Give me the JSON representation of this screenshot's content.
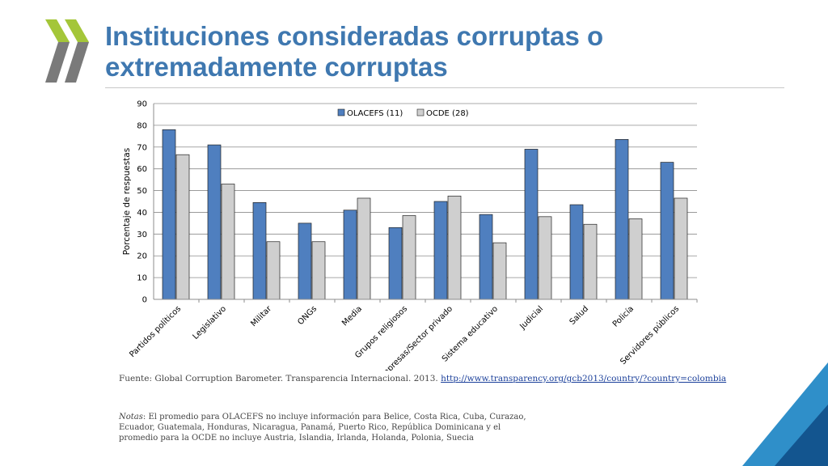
{
  "slide": {
    "title": "Instituciones consideradas corruptas o extremadamente corruptas",
    "logo_icon": "double-chevron-icon",
    "source_prefix": "Fuente: Global Corruption Barometer. Transparencia Internacional. 2013. ",
    "source_link": "http://www.transparency.org/gcb2013/country/?country=colombia",
    "notes_label": "Notas",
    "notes_text": ":  El promedio para OLACEFS no incluye información para Belice, Costa Rica, Cuba, Curazao, Ecuador, Guatemala, Honduras, Nicaragua, Panamá, Puerto Rico, República Dominicana y el promedio para la OCDE no incluye Austria, Islandia, Irlanda, Holanda, Polonia, Suecia",
    "colors": {
      "title": "#3f78b0",
      "chevron_light": "#a4c639",
      "chevron_dark": "#7a7a7a",
      "corner_light": "#2f8fc9",
      "corner_dark": "#13558f"
    }
  },
  "chart_data": {
    "type": "bar",
    "title": "",
    "xlabel": "",
    "ylabel": "Porcentaje de respuestas",
    "ylim": [
      0,
      90
    ],
    "yticks": [
      0,
      10,
      20,
      30,
      40,
      50,
      60,
      70,
      80,
      90
    ],
    "grid": true,
    "legend_position": "top",
    "categories": [
      "Partidos políticos",
      "Legislativo",
      "Militar",
      "ONGs",
      "Media",
      "Grupos religiosos",
      "Empresas/Sector privado",
      "Sistema educativo",
      "Judicial",
      "Salud",
      "Policía",
      "Servidores públicos"
    ],
    "series": [
      {
        "name": "OLACEFS (11)",
        "color": "#4f7fbf",
        "values": [
          78,
          71,
          44.5,
          35,
          41,
          33,
          45,
          39,
          69,
          43.5,
          73.5,
          63
        ]
      },
      {
        "name": "OCDE (28)",
        "color": "#cfcfcf",
        "values": [
          66.5,
          53,
          26.5,
          26.5,
          46.5,
          38.5,
          47.5,
          26,
          38,
          34.5,
          37,
          46.5
        ]
      }
    ]
  }
}
